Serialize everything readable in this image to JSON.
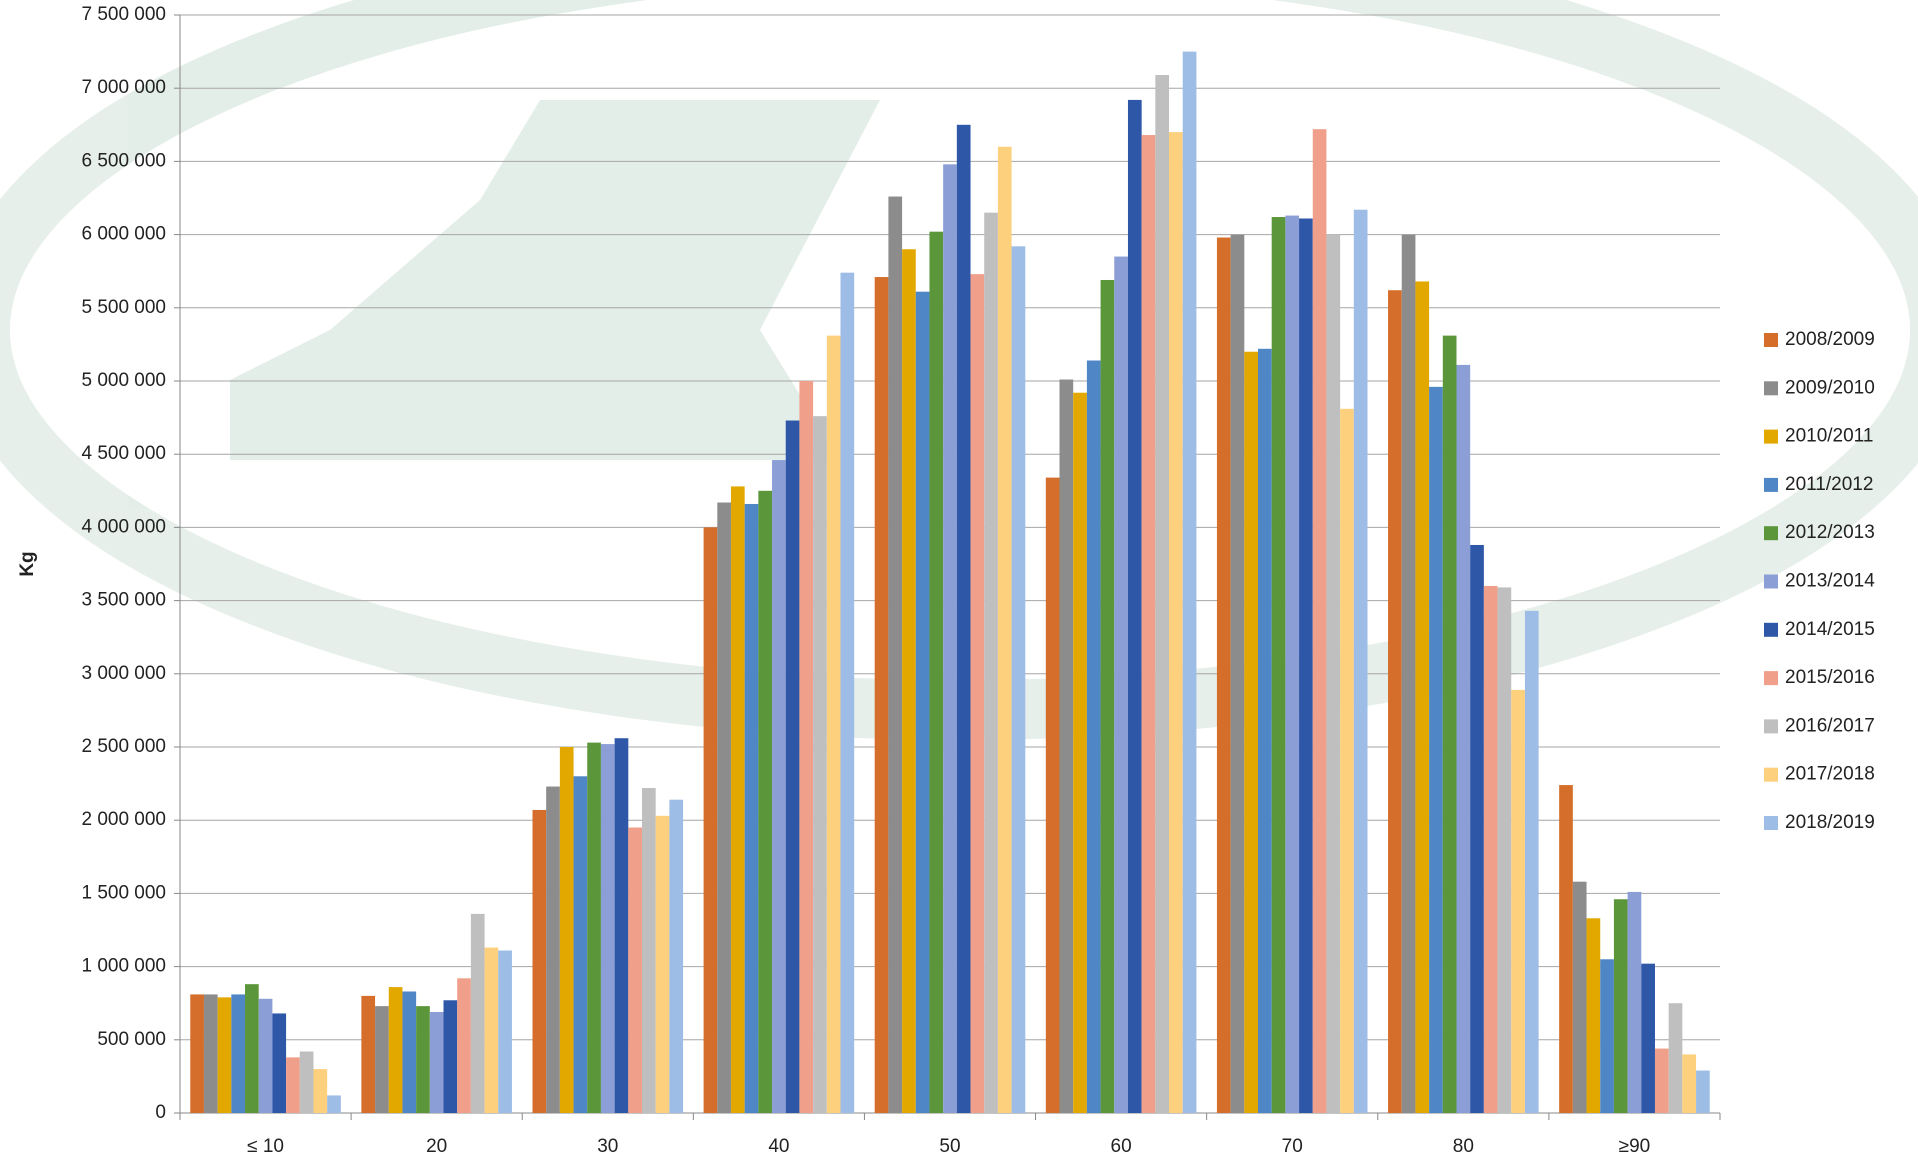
{
  "chart_data": {
    "type": "bar",
    "y_label": "Kg",
    "categories": [
      "≤ 10",
      "20",
      "30",
      "40",
      "50",
      "60",
      "70",
      "80",
      "≥90"
    ],
    "ylim": [
      0,
      7500000
    ],
    "yticks": [
      0,
      {
        "value": 500000,
        "label": "500 000"
      },
      {
        "value": 1000000,
        "label": "1 000 000"
      },
      {
        "value": 1500000,
        "label": "1 500 000"
      },
      {
        "value": 2000000,
        "label": "2 000 000"
      },
      {
        "value": 2500000,
        "label": "2 500 000"
      },
      {
        "value": 3000000,
        "label": "3 000 000"
      },
      {
        "value": 3500000,
        "label": "3 500 000"
      },
      {
        "value": 4000000,
        "label": "4 000 000"
      },
      {
        "value": 4500000,
        "label": "4 500 000"
      },
      {
        "value": 5000000,
        "label": "5 000 000"
      },
      {
        "value": 5500000,
        "label": "5 500 000"
      },
      {
        "value": 6000000,
        "label": "6 000 000"
      },
      {
        "value": 6500000,
        "label": "6 500 000"
      },
      {
        "value": 7000000,
        "label": "7 000 000"
      },
      {
        "value": 7500000,
        "label": "7 500 000"
      }
    ],
    "grid": true,
    "legend": "right",
    "series": [
      {
        "name": "2008/2009",
        "color": "#d46e2a",
        "values": [
          810000,
          800000,
          2070000,
          4000000,
          5710000,
          4340000,
          5980000,
          5620000,
          2240000
        ]
      },
      {
        "name": "2009/2010",
        "color": "#8c8c8c",
        "values": [
          810000,
          730000,
          2230000,
          4170000,
          6260000,
          5010000,
          6000000,
          6000000,
          1580000
        ]
      },
      {
        "name": "2010/2011",
        "color": "#e3a800",
        "values": [
          790000,
          860000,
          2500000,
          4280000,
          5900000,
          4920000,
          5200000,
          5680000,
          1330000
        ]
      },
      {
        "name": "2011/2012",
        "color": "#4f86c6",
        "values": [
          810000,
          830000,
          2300000,
          4160000,
          5610000,
          5140000,
          5220000,
          4960000,
          1050000
        ]
      },
      {
        "name": "2012/2013",
        "color": "#5b963a",
        "values": [
          880000,
          730000,
          2530000,
          4250000,
          6020000,
          5690000,
          6120000,
          5310000,
          1460000
        ]
      },
      {
        "name": "2013/2014",
        "color": "#8b9fd6",
        "values": [
          780000,
          690000,
          2520000,
          4460000,
          6480000,
          5850000,
          6130000,
          5110000,
          1510000
        ]
      },
      {
        "name": "2014/2015",
        "color": "#2f57a8",
        "values": [
          680000,
          770000,
          2560000,
          4730000,
          6750000,
          6920000,
          6110000,
          3880000,
          1020000
        ]
      },
      {
        "name": "2015/2016",
        "color": "#f0a08a",
        "values": [
          380000,
          920000,
          1950000,
          5000000,
          5730000,
          6680000,
          6720000,
          3600000,
          440000
        ]
      },
      {
        "name": "2016/2017",
        "color": "#bfbfbf",
        "values": [
          420000,
          1360000,
          2220000,
          4760000,
          6150000,
          7090000,
          6000000,
          3590000,
          750000
        ]
      },
      {
        "name": "2017/2018",
        "color": "#fdd07e",
        "values": [
          300000,
          1130000,
          2030000,
          5310000,
          6600000,
          6700000,
          4810000,
          2890000,
          400000
        ]
      },
      {
        "name": "2018/2019",
        "color": "#9dbde6",
        "values": [
          120000,
          1110000,
          2140000,
          5740000,
          5920000,
          7250000,
          6170000,
          3430000,
          290000
        ]
      }
    ]
  }
}
